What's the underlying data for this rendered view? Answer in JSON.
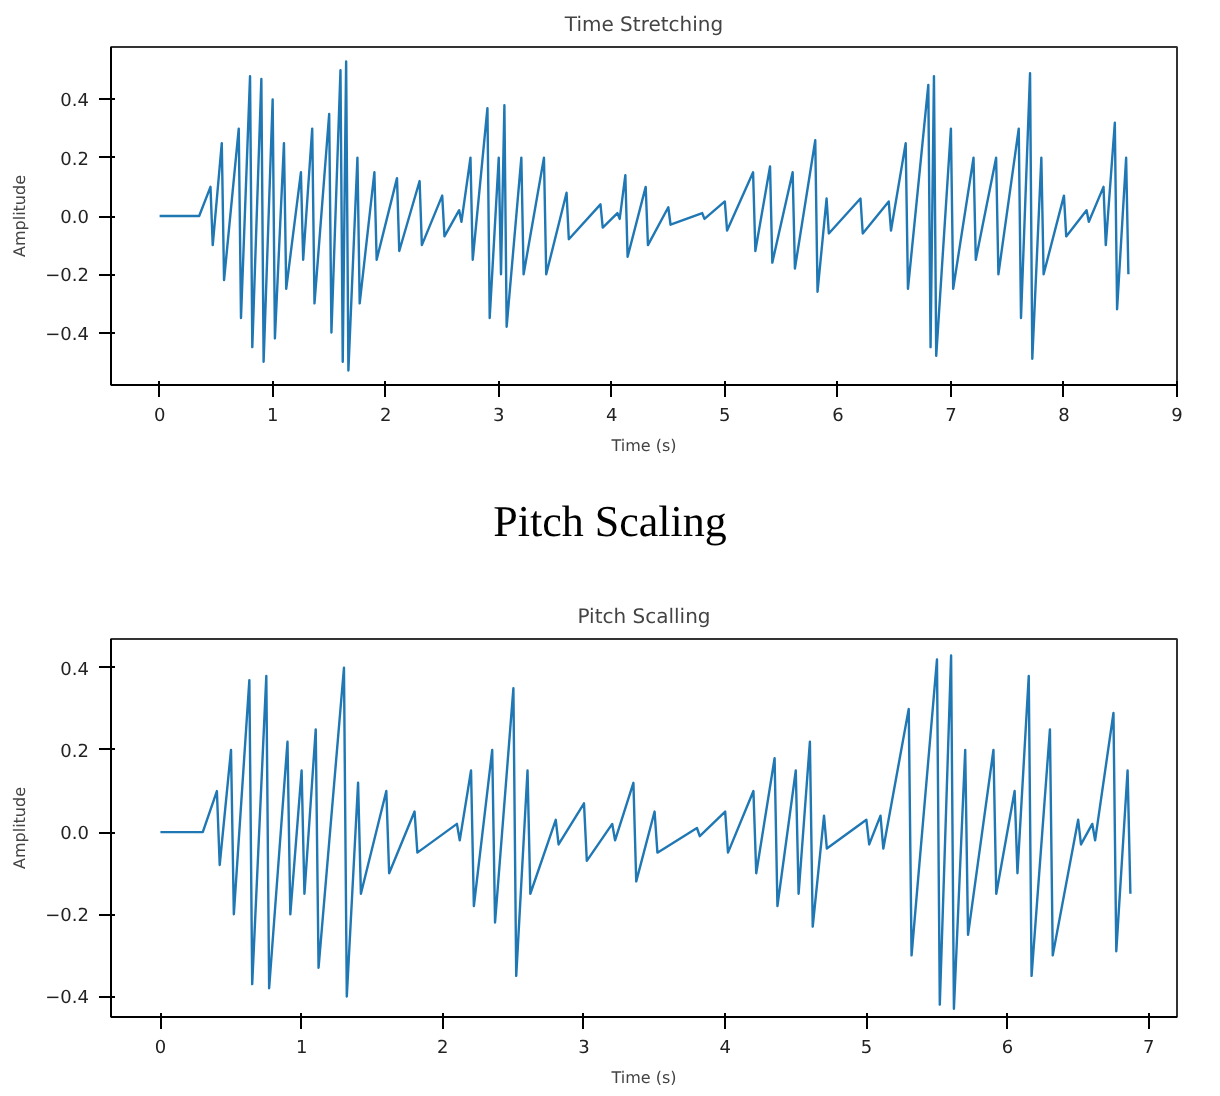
{
  "chart_data": [
    {
      "type": "line",
      "title": "Time Stretching",
      "xlabel": "Time (s)",
      "ylabel": "Amplitude",
      "annotations": [
        "Pitch Scaling"
      ],
      "xlim": [
        -0.43,
        9.0
      ],
      "xticks": [
        0,
        1,
        2,
        3,
        4,
        5,
        6,
        7,
        8,
        9
      ],
      "ylim": [
        -0.58,
        0.58
      ],
      "yticks": [
        -0.4,
        -0.2,
        {
          "value": 0,
          "label": "0.0"
        },
        0.2,
        0.4
      ],
      "grid": false,
      "series": [
        {
          "color": "#1f77b4",
          "x": [
            0,
            0.35,
            0.45,
            0.47,
            0.55,
            0.57,
            0.7,
            0.72,
            0.8,
            0.82,
            0.9,
            0.92,
            1.0,
            1.02,
            1.1,
            1.12,
            1.25,
            1.27,
            1.35,
            1.37,
            1.5,
            1.52,
            1.6,
            1.62,
            1.65,
            1.67,
            1.75,
            1.77,
            1.9,
            1.92,
            2.1,
            2.12,
            2.3,
            2.32,
            2.5,
            2.52,
            2.65,
            2.67,
            2.75,
            2.77,
            2.9,
            2.92,
            3.0,
            3.02,
            3.05,
            3.07,
            3.2,
            3.22,
            3.4,
            3.42,
            3.6,
            3.62,
            3.9,
            3.92,
            4.05,
            4.07,
            4.12,
            4.14,
            4.3,
            4.32,
            4.5,
            4.52,
            4.8,
            4.82,
            5.0,
            5.02,
            5.25,
            5.27,
            5.4,
            5.42,
            5.6,
            5.62,
            5.8,
            5.82,
            5.9,
            5.92,
            6.2,
            6.22,
            6.45,
            6.47,
            6.6,
            6.62,
            6.8,
            6.82,
            6.85,
            6.87,
            7.0,
            7.02,
            7.2,
            7.22,
            7.4,
            7.42,
            7.6,
            7.62,
            7.7,
            7.72,
            7.8,
            7.82,
            8.0,
            8.02,
            8.2,
            8.22,
            8.35,
            8.37,
            8.45,
            8.47,
            8.55,
            8.57
          ],
          "values": [
            0,
            0,
            0.1,
            -0.1,
            0.25,
            -0.22,
            0.3,
            -0.35,
            0.48,
            -0.45,
            0.47,
            -0.5,
            0.4,
            -0.42,
            0.25,
            -0.25,
            0.15,
            -0.15,
            0.3,
            -0.3,
            0.35,
            -0.4,
            0.5,
            -0.5,
            0.53,
            -0.53,
            0.2,
            -0.3,
            0.15,
            -0.15,
            0.13,
            -0.12,
            0.12,
            -0.1,
            0.07,
            -0.07,
            0.02,
            -0.02,
            0.2,
            -0.15,
            0.37,
            -0.35,
            0.2,
            -0.2,
            0.38,
            -0.38,
            0.2,
            -0.2,
            0.2,
            -0.2,
            0.08,
            -0.08,
            0.04,
            -0.04,
            0.01,
            -0.01,
            0.14,
            -0.14,
            0.1,
            -0.1,
            0.03,
            -0.03,
            0.01,
            -0.01,
            0.05,
            -0.05,
            0.15,
            -0.12,
            0.17,
            -0.16,
            0.15,
            -0.18,
            0.26,
            -0.26,
            0.06,
            -0.06,
            0.06,
            -0.06,
            0.05,
            -0.05,
            0.25,
            -0.25,
            0.45,
            -0.45,
            0.48,
            -0.48,
            0.3,
            -0.25,
            0.2,
            -0.15,
            0.2,
            -0.2,
            0.3,
            -0.35,
            0.49,
            -0.49,
            0.2,
            -0.2,
            0.07,
            -0.07,
            0.02,
            -0.02,
            0.1,
            -0.1,
            0.32,
            -0.32,
            0.2,
            -0.2
          ]
        }
      ]
    },
    {
      "type": "line",
      "title": "Pitch Scalling",
      "xlabel": "Time (s)",
      "ylabel": "Amplitude",
      "xlim": [
        -0.35,
        7.2
      ],
      "xticks": [
        0,
        1,
        2,
        3,
        4,
        5,
        6,
        7
      ],
      "ylim": [
        -0.45,
        0.47
      ],
      "yticks": [
        -0.4,
        -0.2,
        {
          "value": 0,
          "label": "0.0"
        },
        0.2,
        0.4
      ],
      "grid": false,
      "series": [
        {
          "color": "#1f77b4",
          "x": [
            0,
            0.3,
            0.4,
            0.42,
            0.5,
            0.52,
            0.63,
            0.65,
            0.75,
            0.77,
            0.9,
            0.92,
            1.0,
            1.02,
            1.1,
            1.12,
            1.3,
            1.32,
            1.4,
            1.42,
            1.6,
            1.62,
            1.8,
            1.82,
            2.1,
            2.12,
            2.2,
            2.22,
            2.35,
            2.37,
            2.5,
            2.52,
            2.6,
            2.62,
            2.8,
            2.82,
            3.0,
            3.02,
            3.2,
            3.22,
            3.35,
            3.37,
            3.5,
            3.52,
            3.8,
            3.82,
            4.0,
            4.02,
            4.2,
            4.22,
            4.35,
            4.37,
            4.5,
            4.52,
            4.6,
            4.62,
            4.7,
            4.72,
            5.0,
            5.02,
            5.1,
            5.12,
            5.3,
            5.32,
            5.5,
            5.52,
            5.6,
            5.62,
            5.7,
            5.72,
            5.9,
            5.92,
            6.05,
            6.07,
            6.15,
            6.17,
            6.3,
            6.32,
            6.5,
            6.52,
            6.6,
            6.62,
            6.75,
            6.77,
            6.85,
            6.87
          ],
          "values": [
            0,
            0,
            0.1,
            -0.08,
            0.2,
            -0.2,
            0.37,
            -0.37,
            0.38,
            -0.38,
            0.22,
            -0.2,
            0.15,
            -0.15,
            0.25,
            -0.33,
            0.4,
            -0.4,
            0.12,
            -0.15,
            0.1,
            -0.1,
            0.05,
            -0.05,
            0.02,
            -0.02,
            0.15,
            -0.18,
            0.2,
            -0.22,
            0.35,
            -0.35,
            0.15,
            -0.15,
            0.03,
            -0.03,
            0.07,
            -0.07,
            0.02,
            -0.02,
            0.12,
            -0.12,
            0.05,
            -0.05,
            0.01,
            -0.01,
            0.05,
            -0.05,
            0.1,
            -0.1,
            0.18,
            -0.18,
            0.15,
            -0.15,
            0.22,
            -0.23,
            0.04,
            -0.04,
            0.03,
            -0.03,
            0.04,
            -0.04,
            0.3,
            -0.3,
            0.42,
            -0.42,
            0.43,
            -0.43,
            0.2,
            -0.25,
            0.2,
            -0.15,
            0.1,
            -0.1,
            0.38,
            -0.35,
            0.25,
            -0.3,
            0.03,
            -0.03,
            0.02,
            -0.02,
            0.29,
            -0.29,
            0.15,
            -0.15
          ]
        }
      ]
    }
  ]
}
